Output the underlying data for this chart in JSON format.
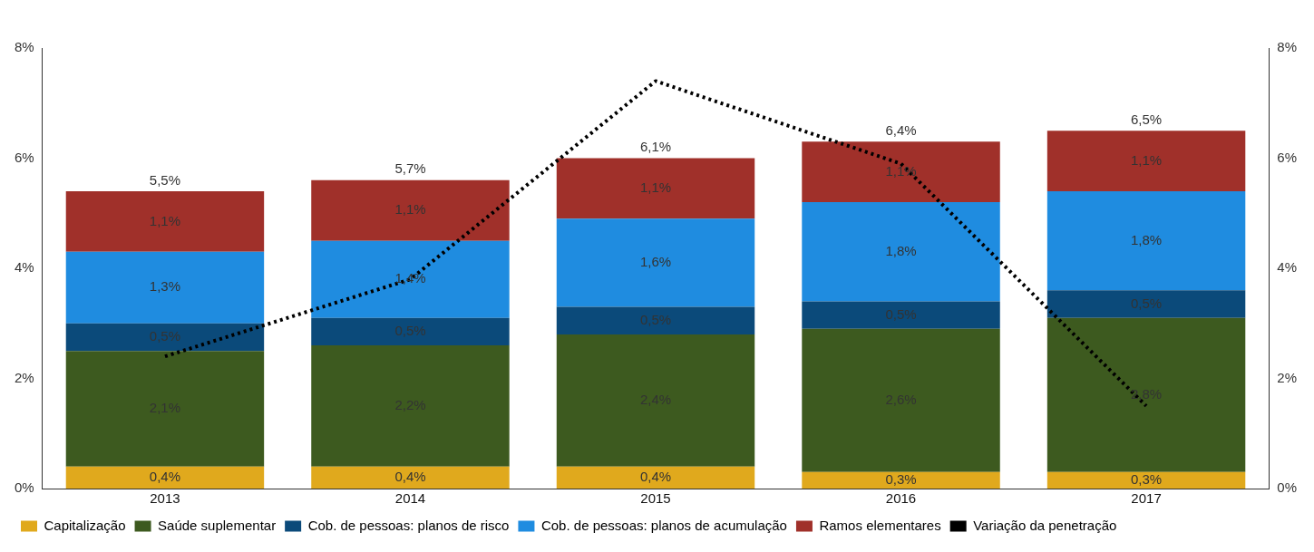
{
  "chart_data": {
    "type": "bar",
    "stacked": true,
    "categories": [
      "2013",
      "2014",
      "2015",
      "2016",
      "2017"
    ],
    "series": [
      {
        "name": "Capitalização",
        "color": "#e0a91d",
        "values": [
          0.4,
          0.4,
          0.4,
          0.3,
          0.3
        ],
        "value_labels": [
          "0,4%",
          "0,4%",
          "0,4%",
          "0,3%",
          "0,3%"
        ]
      },
      {
        "name": "Saúde suplementar",
        "color": "#3d5a1f",
        "values": [
          2.1,
          2.2,
          2.4,
          2.6,
          2.8
        ],
        "value_labels": [
          "2,1%",
          "2,2%",
          "2,4%",
          "2,6%",
          "2,8%"
        ]
      },
      {
        "name": "Cob. de pessoas: planos de risco",
        "color": "#0b4a7a",
        "values": [
          0.5,
          0.5,
          0.5,
          0.5,
          0.5
        ],
        "value_labels": [
          "0,5%",
          "0,5%",
          "0,5%",
          "0,5%",
          "0,5%"
        ]
      },
      {
        "name": "Cob. de pessoas: planos de acumulação",
        "color": "#1f8ce0",
        "values": [
          1.3,
          1.4,
          1.6,
          1.8,
          1.8
        ],
        "value_labels": [
          "1,3%",
          "1,4%",
          "1,6%",
          "1,8%",
          "1,8%"
        ]
      },
      {
        "name": "Ramos elementares",
        "color": "#a0302a",
        "values": [
          1.1,
          1.1,
          1.1,
          1.1,
          1.1
        ],
        "value_labels": [
          "1,1%",
          "1,1%",
          "1,1%",
          "1,1%",
          "1,1%"
        ]
      },
      {
        "name": "Variação da penetração",
        "type": "line",
        "axis": "y2",
        "color": "#000000",
        "values": [
          2.4,
          3.8,
          7.4,
          5.9,
          1.5
        ],
        "marker": "none",
        "line_style": "dotted"
      }
    ],
    "totals": [
      "5,5%",
      "5,7%",
      "6,1%",
      "6,4%",
      "6,5%"
    ],
    "ylim": [
      0,
      8
    ],
    "yticks": [
      {
        "value": 0,
        "label": "0%"
      },
      {
        "value": 2,
        "label": "2%"
      },
      {
        "value": 4,
        "label": "4%"
      },
      {
        "value": 6,
        "label": "6%"
      },
      {
        "value": 8,
        "label": "8%"
      }
    ],
    "y2lim": [
      0,
      8
    ],
    "y2ticks": [
      {
        "value": 0,
        "label": "0%"
      },
      {
        "value": 2,
        "label": "2%"
      },
      {
        "value": 4,
        "label": "4%"
      },
      {
        "value": 6,
        "label": "6%"
      },
      {
        "value": 8,
        "label": "8%"
      }
    ],
    "grid": false,
    "legend": "bottom"
  }
}
